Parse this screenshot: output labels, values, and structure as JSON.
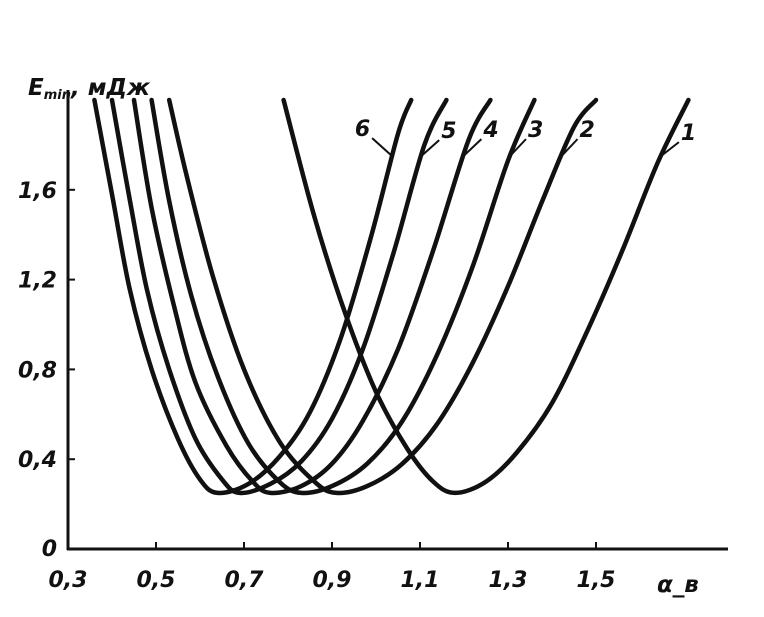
{
  "chart_data": {
    "type": "line",
    "title": "",
    "ylabel": "E_min, мДж",
    "ylabel_parts": {
      "main": "E",
      "sub": "min",
      "unit": ", мДж"
    },
    "xlabel": "α_в",
    "xlim": [
      0.3,
      1.9
    ],
    "ylim": [
      0,
      2.0
    ],
    "x_ticks": [
      0.3,
      0.5,
      0.7,
      0.9,
      1.1,
      1.3,
      1.5
    ],
    "x_tick_labels": [
      "0,3",
      "0,5",
      "0,7",
      "0,9",
      "1,1",
      "1,3",
      "1,5"
    ],
    "y_ticks": [
      0,
      0.4,
      0.8,
      1.2,
      1.6
    ],
    "y_tick_labels": [
      "0",
      "0,4",
      "0,8",
      "1,2",
      "1,6"
    ],
    "grid": false,
    "legend": "none",
    "line_color": "#111111",
    "series": [
      {
        "name": "1",
        "x": [
          0.79,
          0.86,
          0.93,
          1.0,
          1.07,
          1.13,
          1.18,
          1.25,
          1.32,
          1.4,
          1.48,
          1.56,
          1.64,
          1.71
        ],
        "y": [
          2.0,
          1.48,
          1.05,
          0.7,
          0.45,
          0.3,
          0.25,
          0.3,
          0.43,
          0.65,
          0.97,
          1.33,
          1.72,
          2.0
        ]
      },
      {
        "name": "2",
        "x": [
          0.53,
          0.57,
          0.63,
          0.7,
          0.78,
          0.86,
          0.91,
          0.98,
          1.06,
          1.14,
          1.22,
          1.3,
          1.38,
          1.45,
          1.5
        ],
        "y": [
          2.0,
          1.66,
          1.21,
          0.8,
          0.48,
          0.3,
          0.25,
          0.28,
          0.38,
          0.56,
          0.83,
          1.17,
          1.56,
          1.88,
          2.0
        ]
      },
      {
        "name": "3",
        "x": [
          0.49,
          0.53,
          0.58,
          0.64,
          0.71,
          0.78,
          0.83,
          0.9,
          0.98,
          1.06,
          1.14,
          1.22,
          1.3,
          1.36
        ],
        "y": [
          2.0,
          1.55,
          1.13,
          0.77,
          0.47,
          0.3,
          0.25,
          0.28,
          0.38,
          0.57,
          0.87,
          1.26,
          1.73,
          2.0
        ]
      },
      {
        "name": "4",
        "x": [
          0.45,
          0.49,
          0.54,
          0.59,
          0.66,
          0.72,
          0.76,
          0.83,
          0.9,
          0.97,
          1.05,
          1.13,
          1.21,
          1.26
        ],
        "y": [
          2.0,
          1.52,
          1.09,
          0.74,
          0.46,
          0.3,
          0.25,
          0.28,
          0.38,
          0.57,
          0.89,
          1.33,
          1.82,
          2.0
        ]
      },
      {
        "name": "5",
        "x": [
          0.4,
          0.44,
          0.48,
          0.53,
          0.59,
          0.65,
          0.69,
          0.76,
          0.83,
          0.9,
          0.97,
          1.04,
          1.11,
          1.16
        ],
        "y": [
          2.0,
          1.56,
          1.15,
          0.8,
          0.49,
          0.31,
          0.25,
          0.29,
          0.39,
          0.58,
          0.89,
          1.32,
          1.8,
          2.0
        ]
      },
      {
        "name": "6",
        "x": [
          0.36,
          0.4,
          0.44,
          0.49,
          0.55,
          0.6,
          0.64,
          0.71,
          0.78,
          0.85,
          0.92,
          0.99,
          1.05,
          1.08
        ],
        "y": [
          2.0,
          1.58,
          1.16,
          0.8,
          0.49,
          0.31,
          0.25,
          0.29,
          0.41,
          0.61,
          0.94,
          1.4,
          1.85,
          2.0
        ]
      }
    ]
  }
}
